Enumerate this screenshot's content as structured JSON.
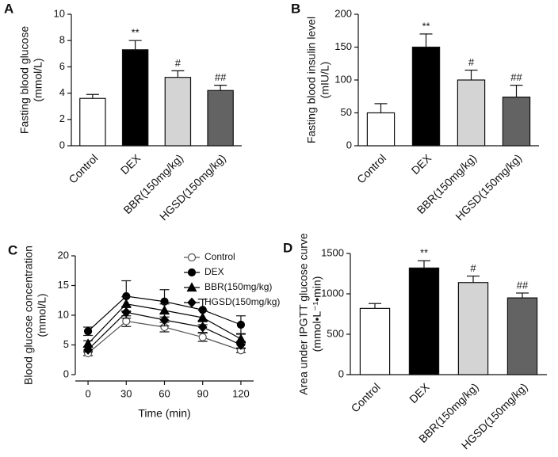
{
  "chart_data": [
    {
      "type": "bar",
      "panel": "A",
      "ylabel": [
        "Fasting blood glucose",
        "(mmol/L)"
      ],
      "categories": [
        "Control",
        "DEX",
        "BBR(150mg/kg)",
        "HGSD(150mg/kg)"
      ],
      "values": [
        3.6,
        7.3,
        5.2,
        4.2
      ],
      "errors": [
        0.3,
        0.7,
        0.5,
        0.4
      ],
      "annotations": [
        null,
        "**",
        "#",
        "##"
      ],
      "colors": [
        "#ffffff",
        "#000000",
        "#d4d4d4",
        "#636363"
      ],
      "ylim": [
        0,
        10
      ],
      "yticks": [
        0,
        2,
        4,
        6,
        8,
        10
      ]
    },
    {
      "type": "bar",
      "panel": "B",
      "ylabel": [
        "Fasting blood insulin level",
        "(mIU/L)"
      ],
      "categories": [
        "Control",
        "DEX",
        "BBR(150mg/kg)",
        "HGSD(150mg/kg)"
      ],
      "values": [
        50,
        150,
        100,
        74
      ],
      "errors": [
        14,
        20,
        15,
        18
      ],
      "annotations": [
        null,
        "**",
        "#",
        "##"
      ],
      "colors": [
        "#ffffff",
        "#000000",
        "#d4d4d4",
        "#636363"
      ],
      "ylim": [
        0,
        200
      ],
      "yticks": [
        0,
        50,
        100,
        150,
        200
      ]
    },
    {
      "type": "line",
      "panel": "C",
      "ylabel": [
        "Blood glucose concentration",
        "(mmol/L)"
      ],
      "xlabel": "Time (min)",
      "x": [
        0,
        30,
        60,
        90,
        120
      ],
      "xlim": [
        -10,
        130
      ],
      "xticks": [
        0,
        30,
        60,
        90,
        120
      ],
      "ylim": [
        0,
        20
      ],
      "yticks": [
        0,
        5,
        10,
        15,
        20
      ],
      "legend": "upper right",
      "series": [
        {
          "name": "Control",
          "marker": "open-circle",
          "color": "#555555",
          "values": [
            3.6,
            9.0,
            8.0,
            6.3,
            4.1
          ],
          "errors": [
            0.4,
            0.9,
            0.8,
            0.7,
            0.4
          ]
        },
        {
          "name": "DEX",
          "marker": "circle",
          "color": "#000000",
          "values": [
            7.3,
            13.2,
            12.3,
            10.9,
            8.4
          ],
          "errors": [
            0.7,
            2.6,
            2.0,
            1.8,
            1.5
          ]
        },
        {
          "name": "BBR(150mg/kg)",
          "marker": "triangle",
          "color": "#000000",
          "values": [
            5.2,
            11.9,
            10.8,
            9.6,
            6.0
          ],
          "errors": [
            0.5,
            1.2,
            1.1,
            1.2,
            0.8
          ]
        },
        {
          "name": "HGSD(150mg/kg)",
          "marker": "diamond",
          "color": "#000000",
          "values": [
            4.2,
            10.5,
            9.2,
            8.0,
            5.0
          ],
          "errors": [
            0.4,
            1.0,
            1.0,
            0.9,
            0.6
          ]
        }
      ]
    },
    {
      "type": "bar",
      "panel": "D",
      "ylabel": [
        "Area under IPGTT glucose curve",
        "(mmol•L⁻¹•min)"
      ],
      "categories": [
        "Control",
        "DEX",
        "BBR(150mg/kg)",
        "HGSD(150mg/kg)"
      ],
      "values": [
        820,
        1320,
        1140,
        950
      ],
      "errors": [
        60,
        90,
        80,
        60
      ],
      "annotations": [
        null,
        "**",
        "#",
        "##"
      ],
      "colors": [
        "#ffffff",
        "#000000",
        "#d4d4d4",
        "#636363"
      ],
      "ylim": [
        0,
        1500
      ],
      "yticks": [
        0,
        500,
        1000,
        1500
      ]
    }
  ]
}
